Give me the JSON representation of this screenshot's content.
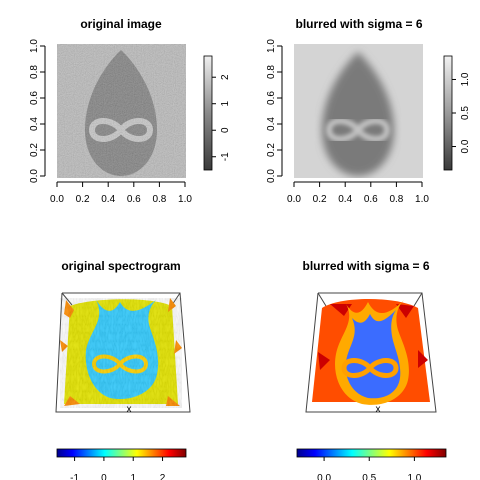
{
  "chart_data": [
    {
      "type": "heatmap",
      "title": "original image",
      "colormap": "grayscale",
      "x_ticks": [
        "0.0",
        "0.2",
        "0.4",
        "0.6",
        "0.8",
        "1.0"
      ],
      "y_ticks": [
        "0.0",
        "0.2",
        "0.4",
        "0.6",
        "0.8",
        "1.0"
      ],
      "xlim": [
        0,
        1
      ],
      "ylim": [
        0,
        1
      ],
      "colorbar": {
        "ticks": [
          "-1",
          "0",
          "1",
          "2"
        ],
        "tick_values": [
          -1,
          0,
          1,
          2
        ],
        "range": [
          -1.5,
          2.8
        ]
      },
      "content": "noisy drop shape with infinity symbol"
    },
    {
      "type": "heatmap",
      "title": "blurred with sigma = 6",
      "colormap": "grayscale",
      "x_ticks": [
        "0.0",
        "0.2",
        "0.4",
        "0.6",
        "0.8",
        "1.0"
      ],
      "y_ticks": [
        "0.0",
        "0.2",
        "0.4",
        "0.6",
        "0.8",
        "1.0"
      ],
      "xlim": [
        0,
        1
      ],
      "ylim": [
        0,
        1
      ],
      "colorbar": {
        "ticks": [
          "0.0",
          "0.5",
          "1.0"
        ],
        "tick_values": [
          0,
          0.5,
          1.0
        ],
        "range": [
          -0.35,
          1.35
        ]
      },
      "content": "smoothed drop shape with infinity symbol"
    },
    {
      "type": "surface3d",
      "title": "original spectrogram",
      "colormap": "jet",
      "axis_labels": [
        "x"
      ],
      "colorbar": {
        "ticks": [
          "-1",
          "0",
          "1",
          "2"
        ],
        "tick_values": [
          -1,
          0,
          1,
          2
        ],
        "range": [
          -1.6,
          2.8
        ]
      }
    },
    {
      "type": "surface3d",
      "title": "blurred with sigma = 6",
      "colormap": "jet",
      "axis_labels": [
        "x"
      ],
      "colorbar": {
        "ticks": [
          "0.0",
          "0.5",
          "1.0"
        ],
        "tick_values": [
          0,
          0.5,
          1.0
        ],
        "range": [
          -0.3,
          1.35
        ]
      }
    }
  ]
}
